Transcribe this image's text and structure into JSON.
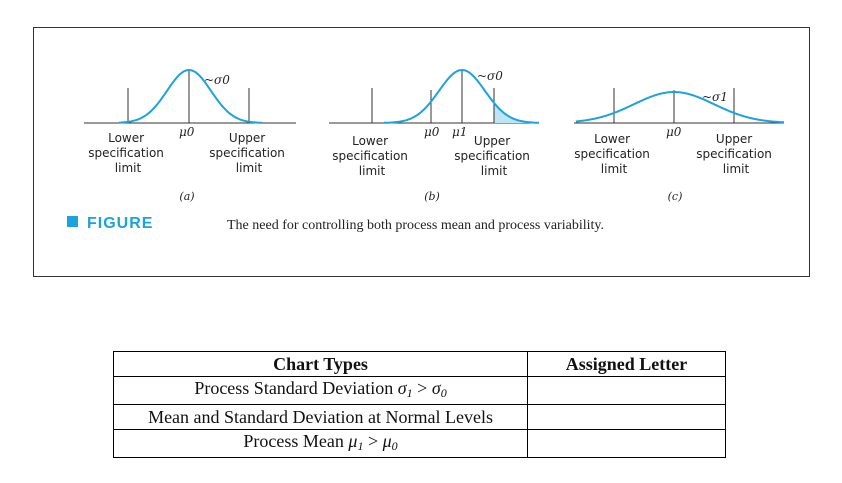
{
  "figure": {
    "title": "FIGURE",
    "caption": "The need for controlling both process mean and process variability.",
    "panels": [
      {
        "letter": "(a)",
        "lower": [
          "Lower",
          "specification",
          "limit"
        ],
        "upper": [
          "Upper",
          "specification",
          "limit"
        ],
        "mean_labels": [
          "μ0"
        ],
        "sigma_label": "~σ0"
      },
      {
        "letter": "(b)",
        "lower": [
          "Lower",
          "specification",
          "limit"
        ],
        "upper": [
          "Upper",
          "specification",
          "limit"
        ],
        "mean_labels": [
          "μ0",
          "μ1"
        ],
        "sigma_label": "~σ0"
      },
      {
        "letter": "(c)",
        "lower": [
          "Lower",
          "specification",
          "limit"
        ],
        "upper": [
          "Upper",
          "specification",
          "limit"
        ],
        "mean_labels": [
          "μ0"
        ],
        "sigma_label": "~σ1"
      }
    ],
    "curve_color": "#1aa3dc",
    "shade_color": "#bfe4f3"
  },
  "table": {
    "headers": [
      "Chart Types",
      "Assigned Letter"
    ],
    "rows": [
      {
        "type": "Process Standard Deviation σ1 > σ0",
        "letter": ""
      },
      {
        "type": "Mean and Standard Deviation at Normal Levels",
        "letter": ""
      },
      {
        "type": "Process Mean μ1 > μ0",
        "letter": ""
      }
    ]
  }
}
